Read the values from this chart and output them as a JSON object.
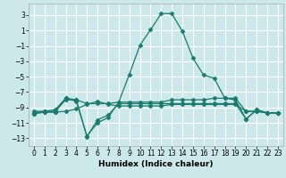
{
  "title": "",
  "xlabel": "Humidex (Indice chaleur)",
  "background_color": "#cce8eb",
  "grid_color": "#ffffff",
  "line_color": "#1a7a6e",
  "xlim": [
    -0.5,
    23.5
  ],
  "ylim": [
    -14,
    4.5
  ],
  "yticks": [
    3,
    1,
    -1,
    -3,
    -5,
    -7,
    -9,
    -11,
    -13
  ],
  "xticks": [
    0,
    1,
    2,
    3,
    4,
    5,
    6,
    7,
    8,
    9,
    10,
    11,
    12,
    13,
    14,
    15,
    16,
    17,
    18,
    19,
    20,
    21,
    22,
    23
  ],
  "series": [
    {
      "x": [
        0,
        1,
        2,
        3,
        4,
        5,
        6,
        7,
        8,
        9,
        10,
        11,
        12,
        13,
        14,
        15,
        16,
        17,
        18,
        19,
        20,
        21,
        22,
        23
      ],
      "y": [
        -9.5,
        -9.5,
        -9.3,
        -7.8,
        -8.2,
        -12.7,
        -11.0,
        -10.3,
        -8.3,
        -4.7,
        -0.9,
        1.1,
        3.2,
        3.2,
        0.9,
        -2.6,
        -4.8,
        -5.2,
        -7.8,
        -8.0,
        -10.5,
        -9.3,
        -9.7,
        -9.7
      ],
      "marker": "D",
      "markersize": 2.5
    },
    {
      "x": [
        0,
        1,
        2,
        3,
        4,
        5,
        6,
        7,
        8,
        9,
        10,
        11,
        12,
        13,
        14,
        15,
        16,
        17,
        18,
        19,
        20,
        21,
        22,
        23
      ],
      "y": [
        -9.7,
        -9.5,
        -9.5,
        -8.0,
        -8.0,
        -8.5,
        -8.5,
        -8.5,
        -8.3,
        -8.3,
        -8.3,
        -8.3,
        -8.3,
        -8.0,
        -8.0,
        -8.0,
        -8.0,
        -7.8,
        -7.8,
        -7.8,
        -9.5,
        -9.5,
        -9.7,
        -9.7
      ],
      "marker": "D",
      "markersize": 2.5
    },
    {
      "x": [
        0,
        1,
        2,
        3,
        4,
        5,
        6,
        7,
        8,
        9,
        10,
        11,
        12,
        13,
        14,
        15,
        16,
        17,
        18,
        19,
        20,
        21,
        22,
        23
      ],
      "y": [
        -9.8,
        -9.6,
        -9.6,
        -7.8,
        -8.0,
        -12.8,
        -10.6,
        -10.0,
        -8.5,
        -8.5,
        -8.5,
        -8.5,
        -8.5,
        -8.5,
        -8.5,
        -8.5,
        -8.5,
        -8.5,
        -8.5,
        -8.5,
        -10.5,
        -9.3,
        -9.7,
        -9.7
      ],
      "marker": "D",
      "markersize": 2.5
    },
    {
      "x": [
        0,
        1,
        2,
        3,
        4,
        5,
        6,
        7,
        8,
        9,
        10,
        11,
        12,
        13,
        14,
        15,
        16,
        17,
        18,
        19,
        20,
        21,
        22,
        23
      ],
      "y": [
        -9.8,
        -9.6,
        -9.6,
        -9.5,
        -9.2,
        -8.6,
        -8.2,
        -8.6,
        -8.8,
        -8.8,
        -8.8,
        -8.8,
        -8.8,
        -8.6,
        -8.6,
        -8.6,
        -8.6,
        -8.6,
        -8.6,
        -8.6,
        -9.5,
        -9.5,
        -9.7,
        -9.7
      ],
      "marker": "D",
      "markersize": 2.5
    }
  ]
}
